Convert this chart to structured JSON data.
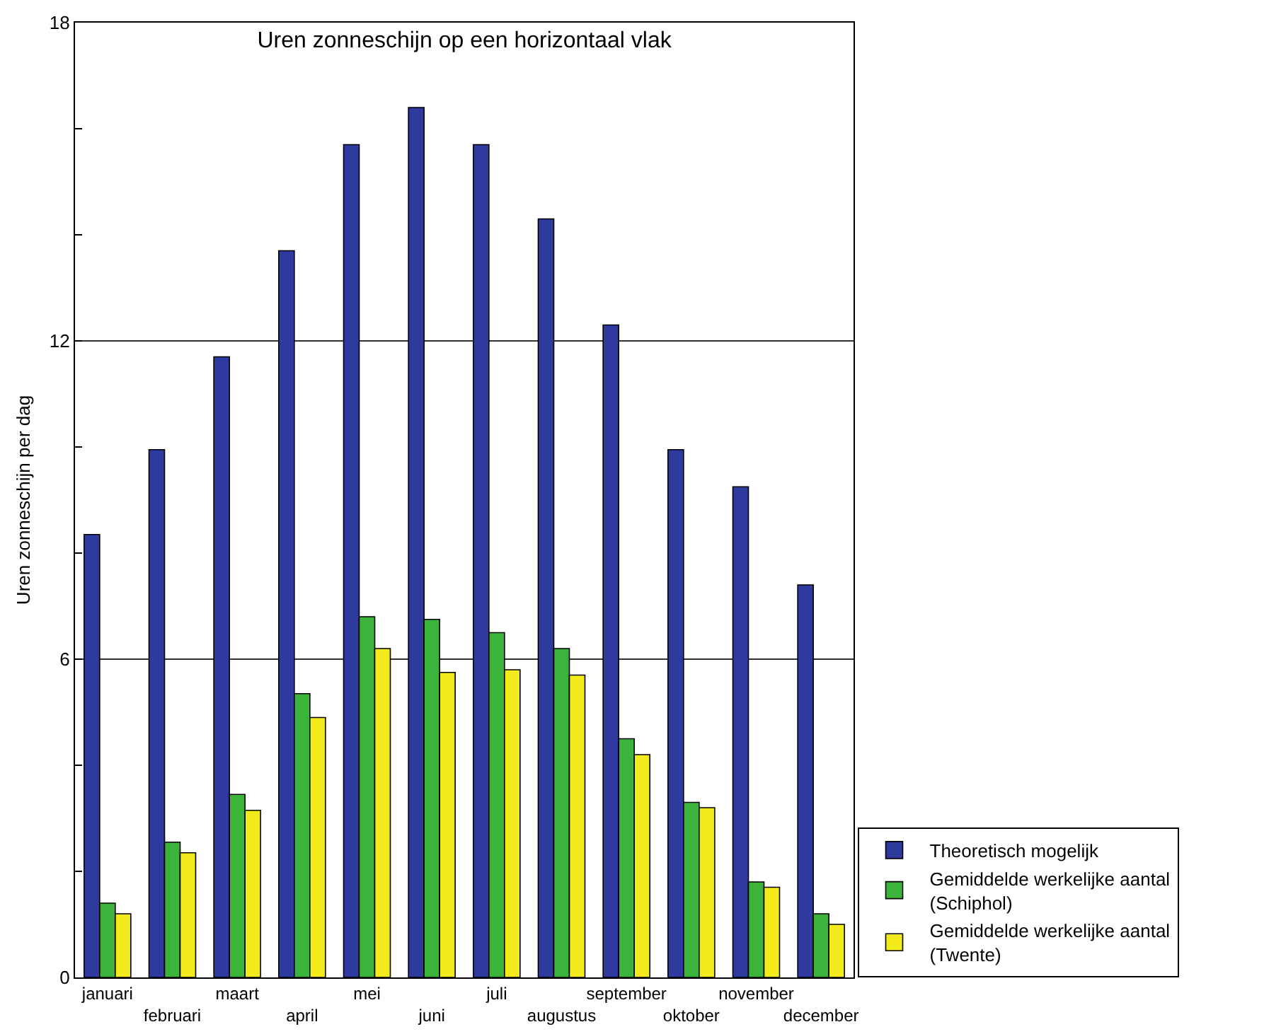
{
  "chart_data": {
    "type": "bar",
    "title": "Uren zonneschijn op een horizontaal vlak",
    "ylabel": "Uren zonneschijn per dag",
    "categories": [
      "januari",
      "februari",
      "maart",
      "april",
      "mei",
      "juni",
      "juli",
      "augustus",
      "september",
      "oktober",
      "november",
      "december"
    ],
    "series": [
      {
        "name": "Theoretisch mogelijk",
        "color": "#2e3a9e",
        "values": [
          8.35,
          9.95,
          11.7,
          13.7,
          15.7,
          16.4,
          15.7,
          14.3,
          12.3,
          9.95,
          9.25,
          7.4
        ]
      },
      {
        "name": "Gemiddelde werkelijke aantal\n(Schiphol)",
        "color": "#3cb43c",
        "values": [
          1.4,
          2.55,
          3.45,
          5.35,
          6.8,
          6.75,
          6.5,
          6.2,
          4.5,
          3.3,
          1.8,
          1.2
        ]
      },
      {
        "name": "Gemiddelde werkelijke aantal\n(Twente)",
        "color": "#f2ea1a",
        "values": [
          1.2,
          2.35,
          3.15,
          4.9,
          6.2,
          5.75,
          5.8,
          5.7,
          4.2,
          3.2,
          1.7,
          1.0
        ]
      }
    ],
    "ylim": [
      0,
      18
    ],
    "yticks": [
      0,
      {
        "value": 2,
        "label": null
      },
      {
        "value": 4,
        "label": null
      },
      6,
      {
        "value": 8,
        "label": null
      },
      {
        "value": 10,
        "label": null
      },
      12,
      {
        "value": 14,
        "label": null
      },
      {
        "value": 16,
        "label": null
      },
      18
    ],
    "grid": "y",
    "legend": "bottom right"
  }
}
